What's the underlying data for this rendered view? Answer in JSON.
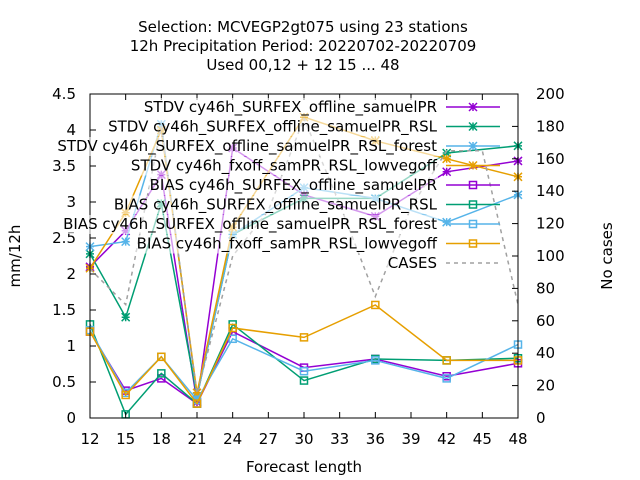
{
  "chart_data": {
    "type": "line",
    "title_lines": [
      "Selection: MCVEGP2gt075 using    23 stations",
      "12h Precipitation   Period: 20220702-20220709",
      "Used  00,12  + 12 15 ... 48"
    ],
    "xlabel": "Forecast length",
    "ylabel": "mm/12h",
    "y2label": "No cases",
    "x": [
      12,
      15,
      18,
      21,
      24,
      27,
      30,
      33,
      36,
      39,
      42,
      45,
      48
    ],
    "xticks": [
      12,
      15,
      18,
      21,
      24,
      27,
      30,
      33,
      36,
      39,
      42,
      45,
      48
    ],
    "xlim": [
      12,
      48
    ],
    "ylim": [
      0,
      4.5
    ],
    "yticks": [
      0,
      0.5,
      1,
      1.5,
      2,
      2.5,
      3,
      3.5,
      4,
      4.5
    ],
    "ytick_labels": [
      "0",
      "0.5",
      "1",
      "1.5",
      "2",
      "2.5",
      "3",
      "3.5",
      "4",
      "4.5"
    ],
    "y2lim": [
      0,
      200
    ],
    "y2ticks": [
      0,
      20,
      40,
      60,
      80,
      100,
      120,
      140,
      160,
      180,
      200
    ],
    "legend_position": "top-right",
    "series": [
      {
        "name": "STDV cy46h_SURFEX_offline_samuelPR",
        "axis": "y",
        "color": "#9400d3",
        "marker": "star",
        "x": [
          12,
          15,
          18,
          21,
          24,
          30,
          36,
          42,
          48
        ],
        "values": [
          2.1,
          2.6,
          3.38,
          0.22,
          3.75,
          3.1,
          2.8,
          3.42,
          3.57
        ]
      },
      {
        "name": "STDV cy46h_SURFEX_offline_samuelPR_RSL",
        "axis": "y",
        "color": "#009e73",
        "marker": "star",
        "x": [
          12,
          15,
          18,
          21,
          24,
          30,
          36,
          42,
          48
        ],
        "values": [
          2.28,
          1.4,
          2.98,
          0.3,
          2.55,
          3.05,
          3.05,
          3.68,
          3.78
        ]
      },
      {
        "name": "STDV cy46h_SURFEX_offline_samuelPR_RSL_forest",
        "axis": "y",
        "color": "#56b4e9",
        "marker": "star",
        "x": [
          12,
          15,
          18,
          21,
          24,
          30,
          36,
          42,
          48
        ],
        "values": [
          2.38,
          2.45,
          4.08,
          0.3,
          2.55,
          3.2,
          3.05,
          2.72,
          3.1
        ]
      },
      {
        "name": "STDV cy46h_fxoff_samPR_RSL_lowvegoff",
        "axis": "y",
        "color": "#e69f00",
        "marker": "star",
        "x": [
          12,
          15,
          18,
          21,
          24,
          30,
          36,
          42,
          48
        ],
        "values": [
          2.08,
          2.85,
          4.0,
          0.35,
          2.65,
          4.18,
          3.85,
          3.6,
          3.35
        ]
      },
      {
        "name": "BIAS cy46h_SURFEX_offline_samuelPR",
        "axis": "y",
        "color": "#9400d3",
        "marker": "square",
        "x": [
          12,
          15,
          18,
          21,
          24,
          30,
          36,
          42,
          48
        ],
        "values": [
          1.2,
          0.38,
          0.55,
          0.2,
          1.2,
          0.7,
          0.82,
          0.58,
          0.76
        ]
      },
      {
        "name": "BIAS cy46h_SURFEX_offline_samuelPR_RSL",
        "axis": "y",
        "color": "#009e73",
        "marker": "square",
        "x": [
          12,
          15,
          18,
          21,
          24,
          30,
          36,
          42,
          48
        ],
        "values": [
          1.3,
          0.05,
          0.62,
          0.2,
          1.3,
          0.52,
          0.82,
          0.8,
          0.83
        ]
      },
      {
        "name": "BIAS cy46h_SURFEX_offline_samuelPR_RSL_forest",
        "axis": "y",
        "color": "#56b4e9",
        "marker": "square",
        "x": [
          12,
          15,
          18,
          21,
          24,
          30,
          36,
          42,
          48
        ],
        "values": [
          1.22,
          0.35,
          0.85,
          0.25,
          1.1,
          0.65,
          0.8,
          0.55,
          1.02
        ]
      },
      {
        "name": "BIAS cy46h_fxoff_samPR_RSL_lowvegoff",
        "axis": "y",
        "color": "#e69f00",
        "marker": "square",
        "x": [
          12,
          15,
          18,
          21,
          24,
          30,
          36,
          42,
          48
        ],
        "values": [
          1.2,
          0.32,
          0.85,
          0.2,
          1.25,
          1.12,
          1.57,
          0.8,
          0.8
        ]
      },
      {
        "name": "CASES",
        "axis": "y2",
        "color": "#a0a0a0",
        "marker": "none",
        "dashed": true,
        "x": [
          12,
          15,
          18,
          21,
          24,
          27,
          30,
          33,
          36,
          39,
          42,
          45,
          48
        ],
        "values": [
          92,
          70,
          180,
          15,
          100,
          128,
          185,
          132,
          75,
          130,
          165,
          165,
          70
        ]
      }
    ]
  }
}
